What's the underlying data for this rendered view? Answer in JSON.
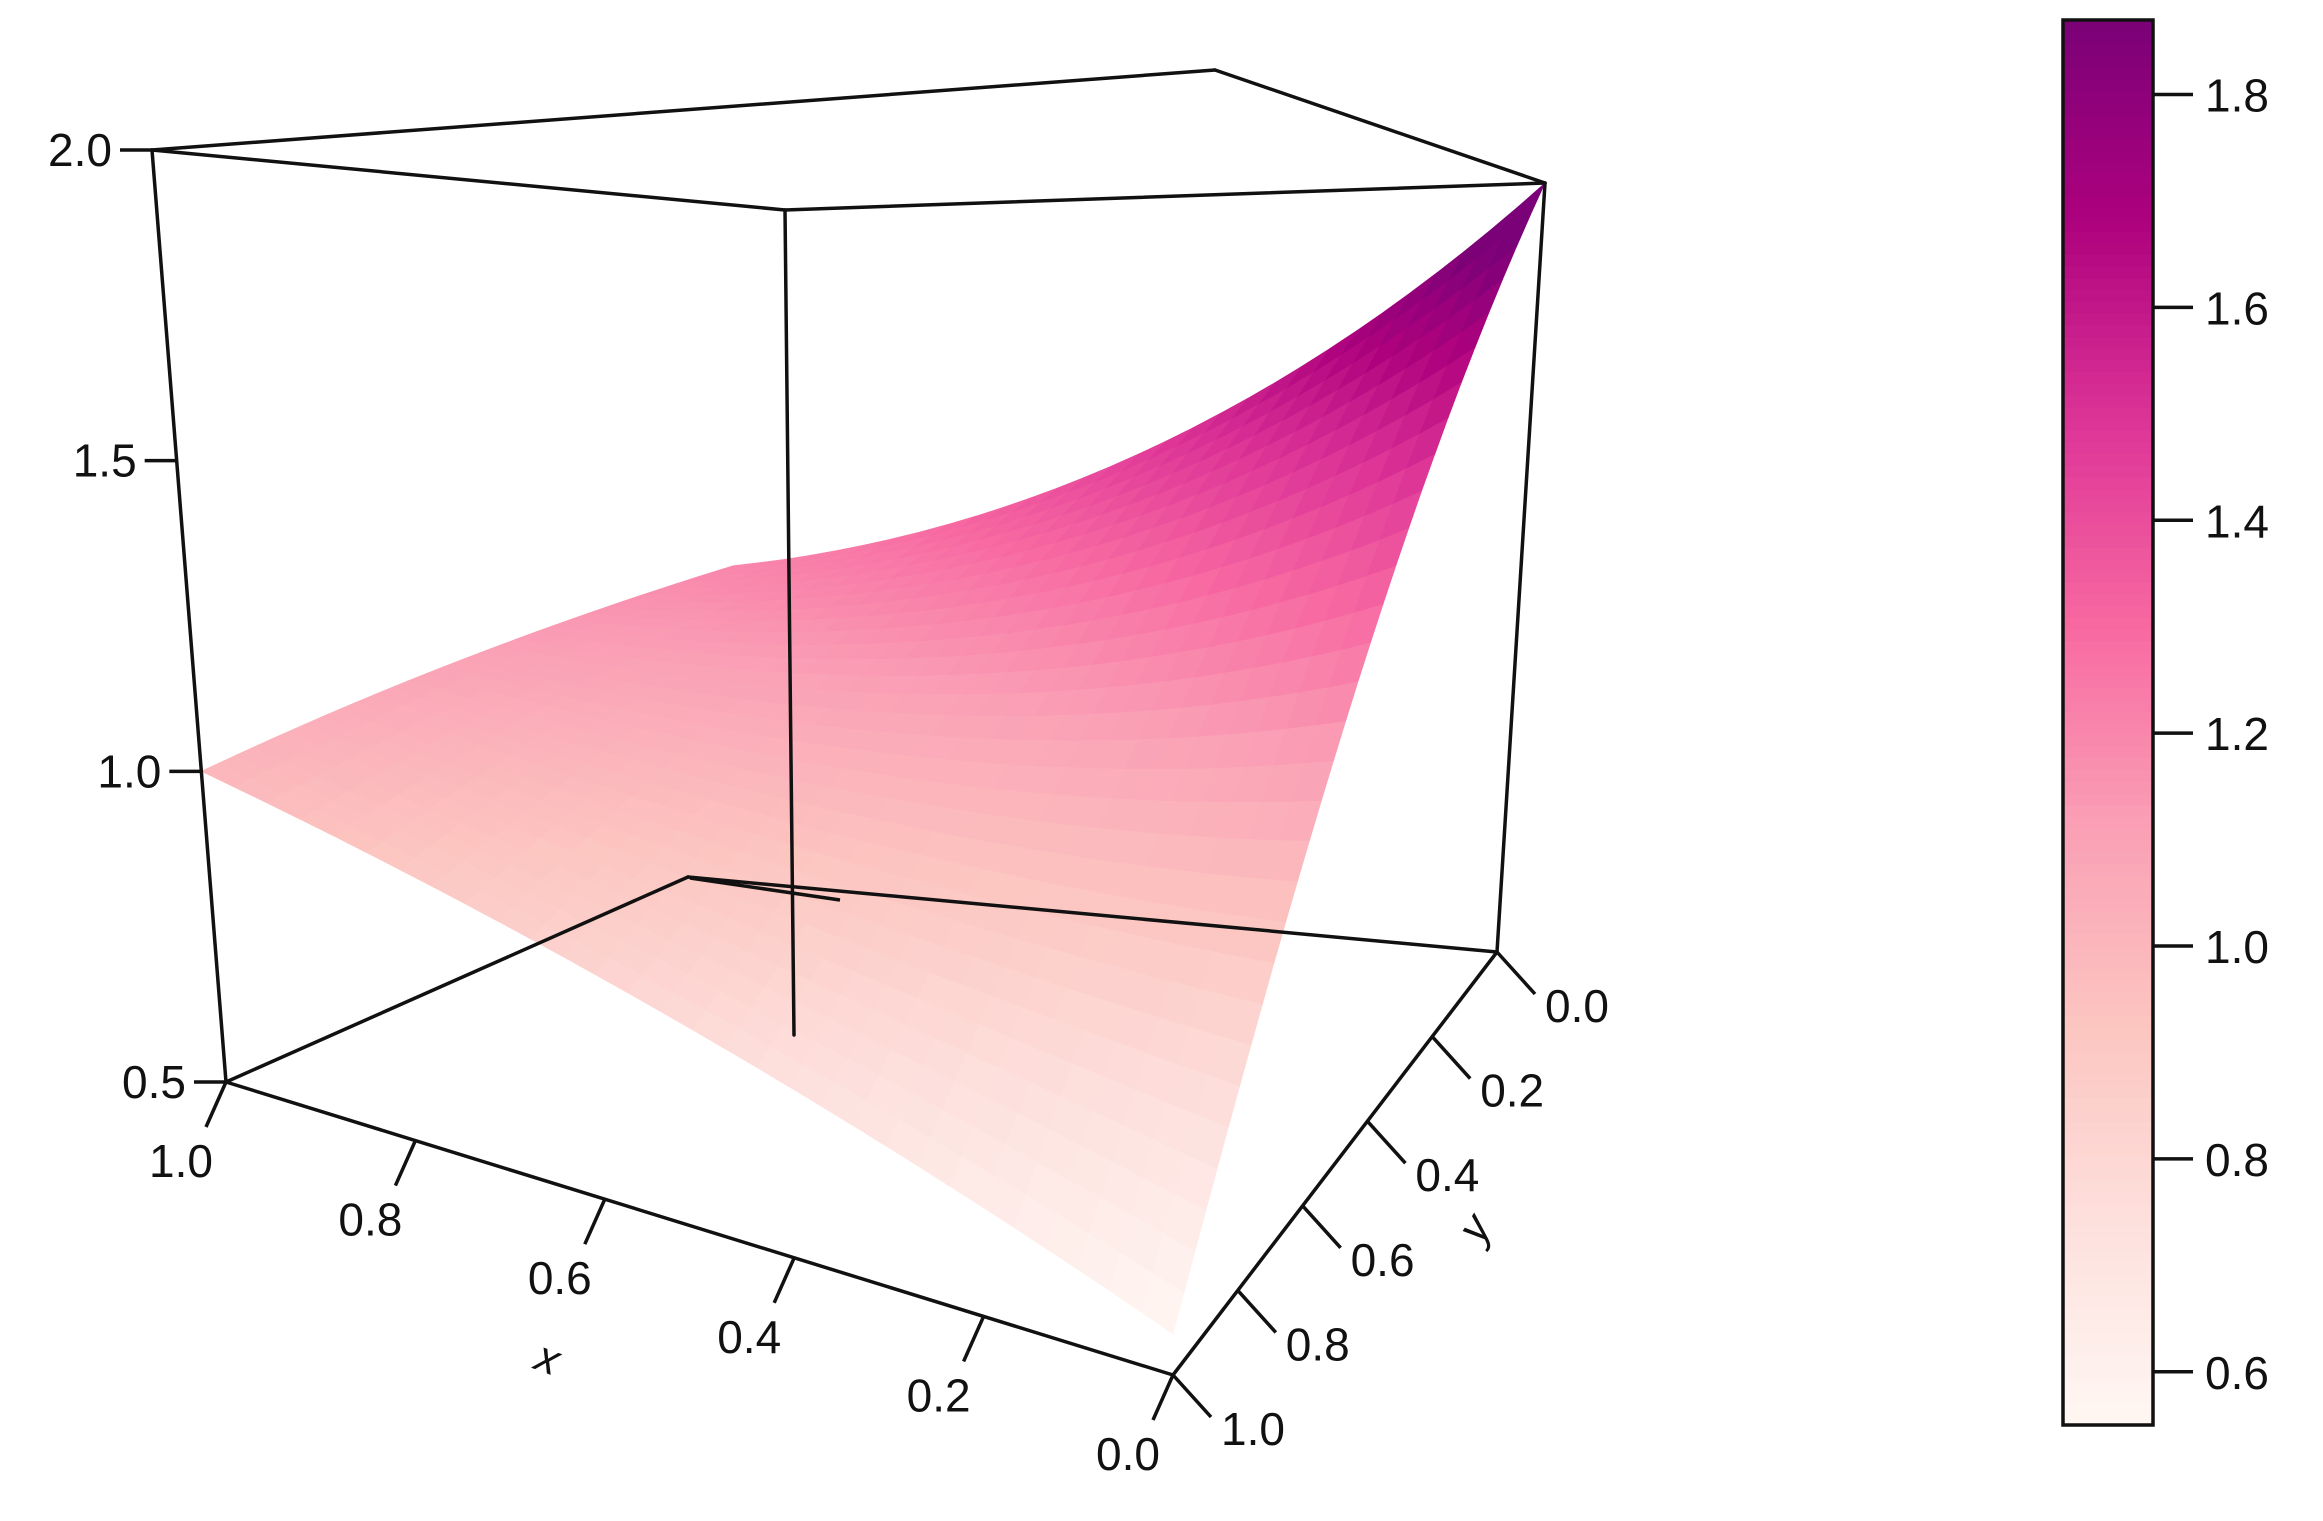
{
  "chart_data": {
    "type": "surface",
    "title": "",
    "xlabel": "x",
    "ylabel": "y",
    "zlabel": "",
    "xlim": [
      0,
      1
    ],
    "ylim": [
      0,
      1
    ],
    "zlim": [
      0.5,
      2.0
    ],
    "x_ticks": [
      {
        "value": 1.0,
        "label": "1.0"
      },
      {
        "value": 0.8,
        "label": "0.8"
      },
      {
        "value": 0.6,
        "label": "0.6"
      },
      {
        "value": 0.4,
        "label": "0.4"
      },
      {
        "value": 0.2,
        "label": "0.2"
      },
      {
        "value": 0.0,
        "label": "0.0"
      }
    ],
    "y_ticks": [
      {
        "value": 0.0,
        "label": "0.0"
      },
      {
        "value": 0.2,
        "label": "0.2"
      },
      {
        "value": 0.4,
        "label": "0.4"
      },
      {
        "value": 0.6,
        "label": "0.6"
      },
      {
        "value": 0.8,
        "label": "0.8"
      },
      {
        "value": 1.0,
        "label": "1.0"
      }
    ],
    "z_ticks": [
      {
        "value": 2.0,
        "label": "2.0"
      },
      {
        "value": 1.5,
        "label": "1.5"
      },
      {
        "value": 1.0,
        "label": "1.0"
      },
      {
        "value": 0.5,
        "label": "0.5"
      }
    ],
    "surface_corners": [
      {
        "x": 0,
        "y": 0,
        "z": 2.0
      },
      {
        "x": 1,
        "y": 0,
        "z": 1.2
      },
      {
        "x": 1,
        "y": 1,
        "z": 1.0
      },
      {
        "x": 0,
        "y": 1,
        "z": 0.55
      }
    ],
    "colorbar": {
      "min": 0.55,
      "max": 1.87,
      "ticks": [
        {
          "value": 0.6,
          "label": "0.6"
        },
        {
          "value": 0.8,
          "label": "0.8"
        },
        {
          "value": 1.0,
          "label": "1.0"
        },
        {
          "value": 1.2,
          "label": "1.2"
        },
        {
          "value": 1.4,
          "label": "1.4"
        },
        {
          "value": 1.6,
          "label": "1.6"
        },
        {
          "value": 1.8,
          "label": "1.8"
        }
      ],
      "colors": [
        "#fff7f3",
        "#fde0dd",
        "#fcc5c0",
        "#fa9fb5",
        "#f768a1",
        "#dd3497",
        "#ae017e",
        "#7a0177"
      ]
    },
    "grid": false,
    "legend": "colorbar-right"
  }
}
